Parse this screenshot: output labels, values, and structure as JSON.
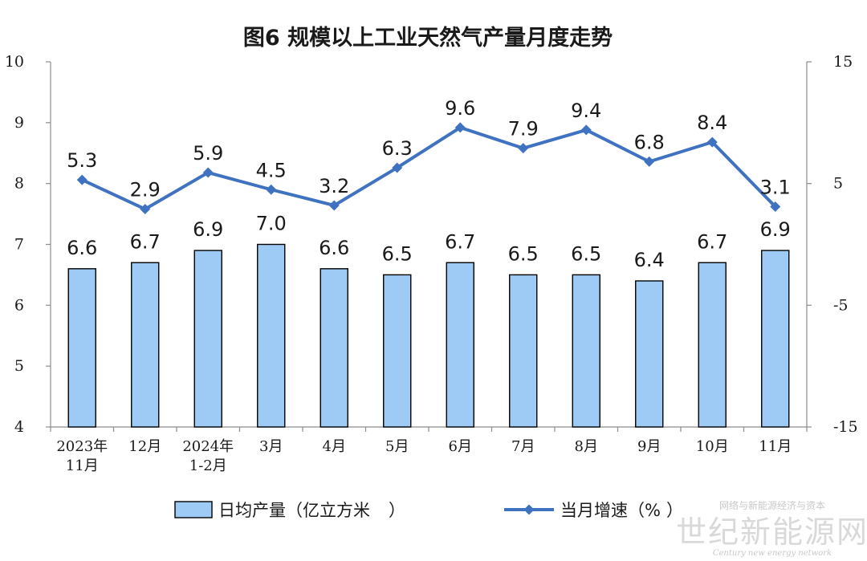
{
  "chart_data": {
    "type": "bar",
    "title": "图6  规模以上工业天然气产量月度走势",
    "categories": [
      [
        "2023年",
        "11月"
      ],
      [
        "12月"
      ],
      [
        "2024年",
        "1-2月"
      ],
      [
        "3月"
      ],
      [
        "4月"
      ],
      [
        "5月"
      ],
      [
        "6月"
      ],
      [
        "7月"
      ],
      [
        "8月"
      ],
      [
        "9月"
      ],
      [
        "10月"
      ],
      [
        "11月"
      ]
    ],
    "left_axis": {
      "min": 4,
      "max": 10,
      "ticks": [
        "4",
        "5",
        "6",
        "7",
        "8",
        "9",
        "10"
      ]
    },
    "right_axis": {
      "min": -15,
      "max": 15,
      "ticks": [
        "-15",
        "-5",
        "5",
        "15"
      ]
    },
    "series": [
      {
        "name": "日均产量（亿立方米",
        "type": "bar",
        "axis": "left",
        "color": "#9ecbf5",
        "values": [
          6.6,
          6.7,
          6.9,
          7.0,
          6.6,
          6.5,
          6.7,
          6.5,
          6.5,
          6.4,
          6.7,
          6.9
        ],
        "labels": [
          "6.6",
          "6.7",
          "6.9",
          "7.0",
          "6.6",
          "6.5",
          "6.7",
          "6.5",
          "6.5",
          "6.4",
          "6.7",
          "6.9"
        ]
      },
      {
        "name": "当月增速（%",
        "type": "line",
        "axis": "right",
        "color": "#3f72c0",
        "values": [
          5.3,
          2.9,
          5.9,
          4.5,
          3.2,
          6.3,
          9.6,
          7.9,
          9.4,
          6.8,
          8.4,
          3.1
        ],
        "labels": [
          "5.3",
          "2.9",
          "5.9",
          "4.5",
          "3.2",
          "6.3",
          "9.6",
          "7.9",
          "9.4",
          "6.8",
          "8.4",
          "3.1"
        ]
      }
    ],
    "legend": {
      "position": "bottom"
    },
    "grid": false
  },
  "watermark": {
    "main": "世纪新能源网",
    "tagline": "网络与新能源经济与资本",
    "english": "Century new energy network"
  }
}
